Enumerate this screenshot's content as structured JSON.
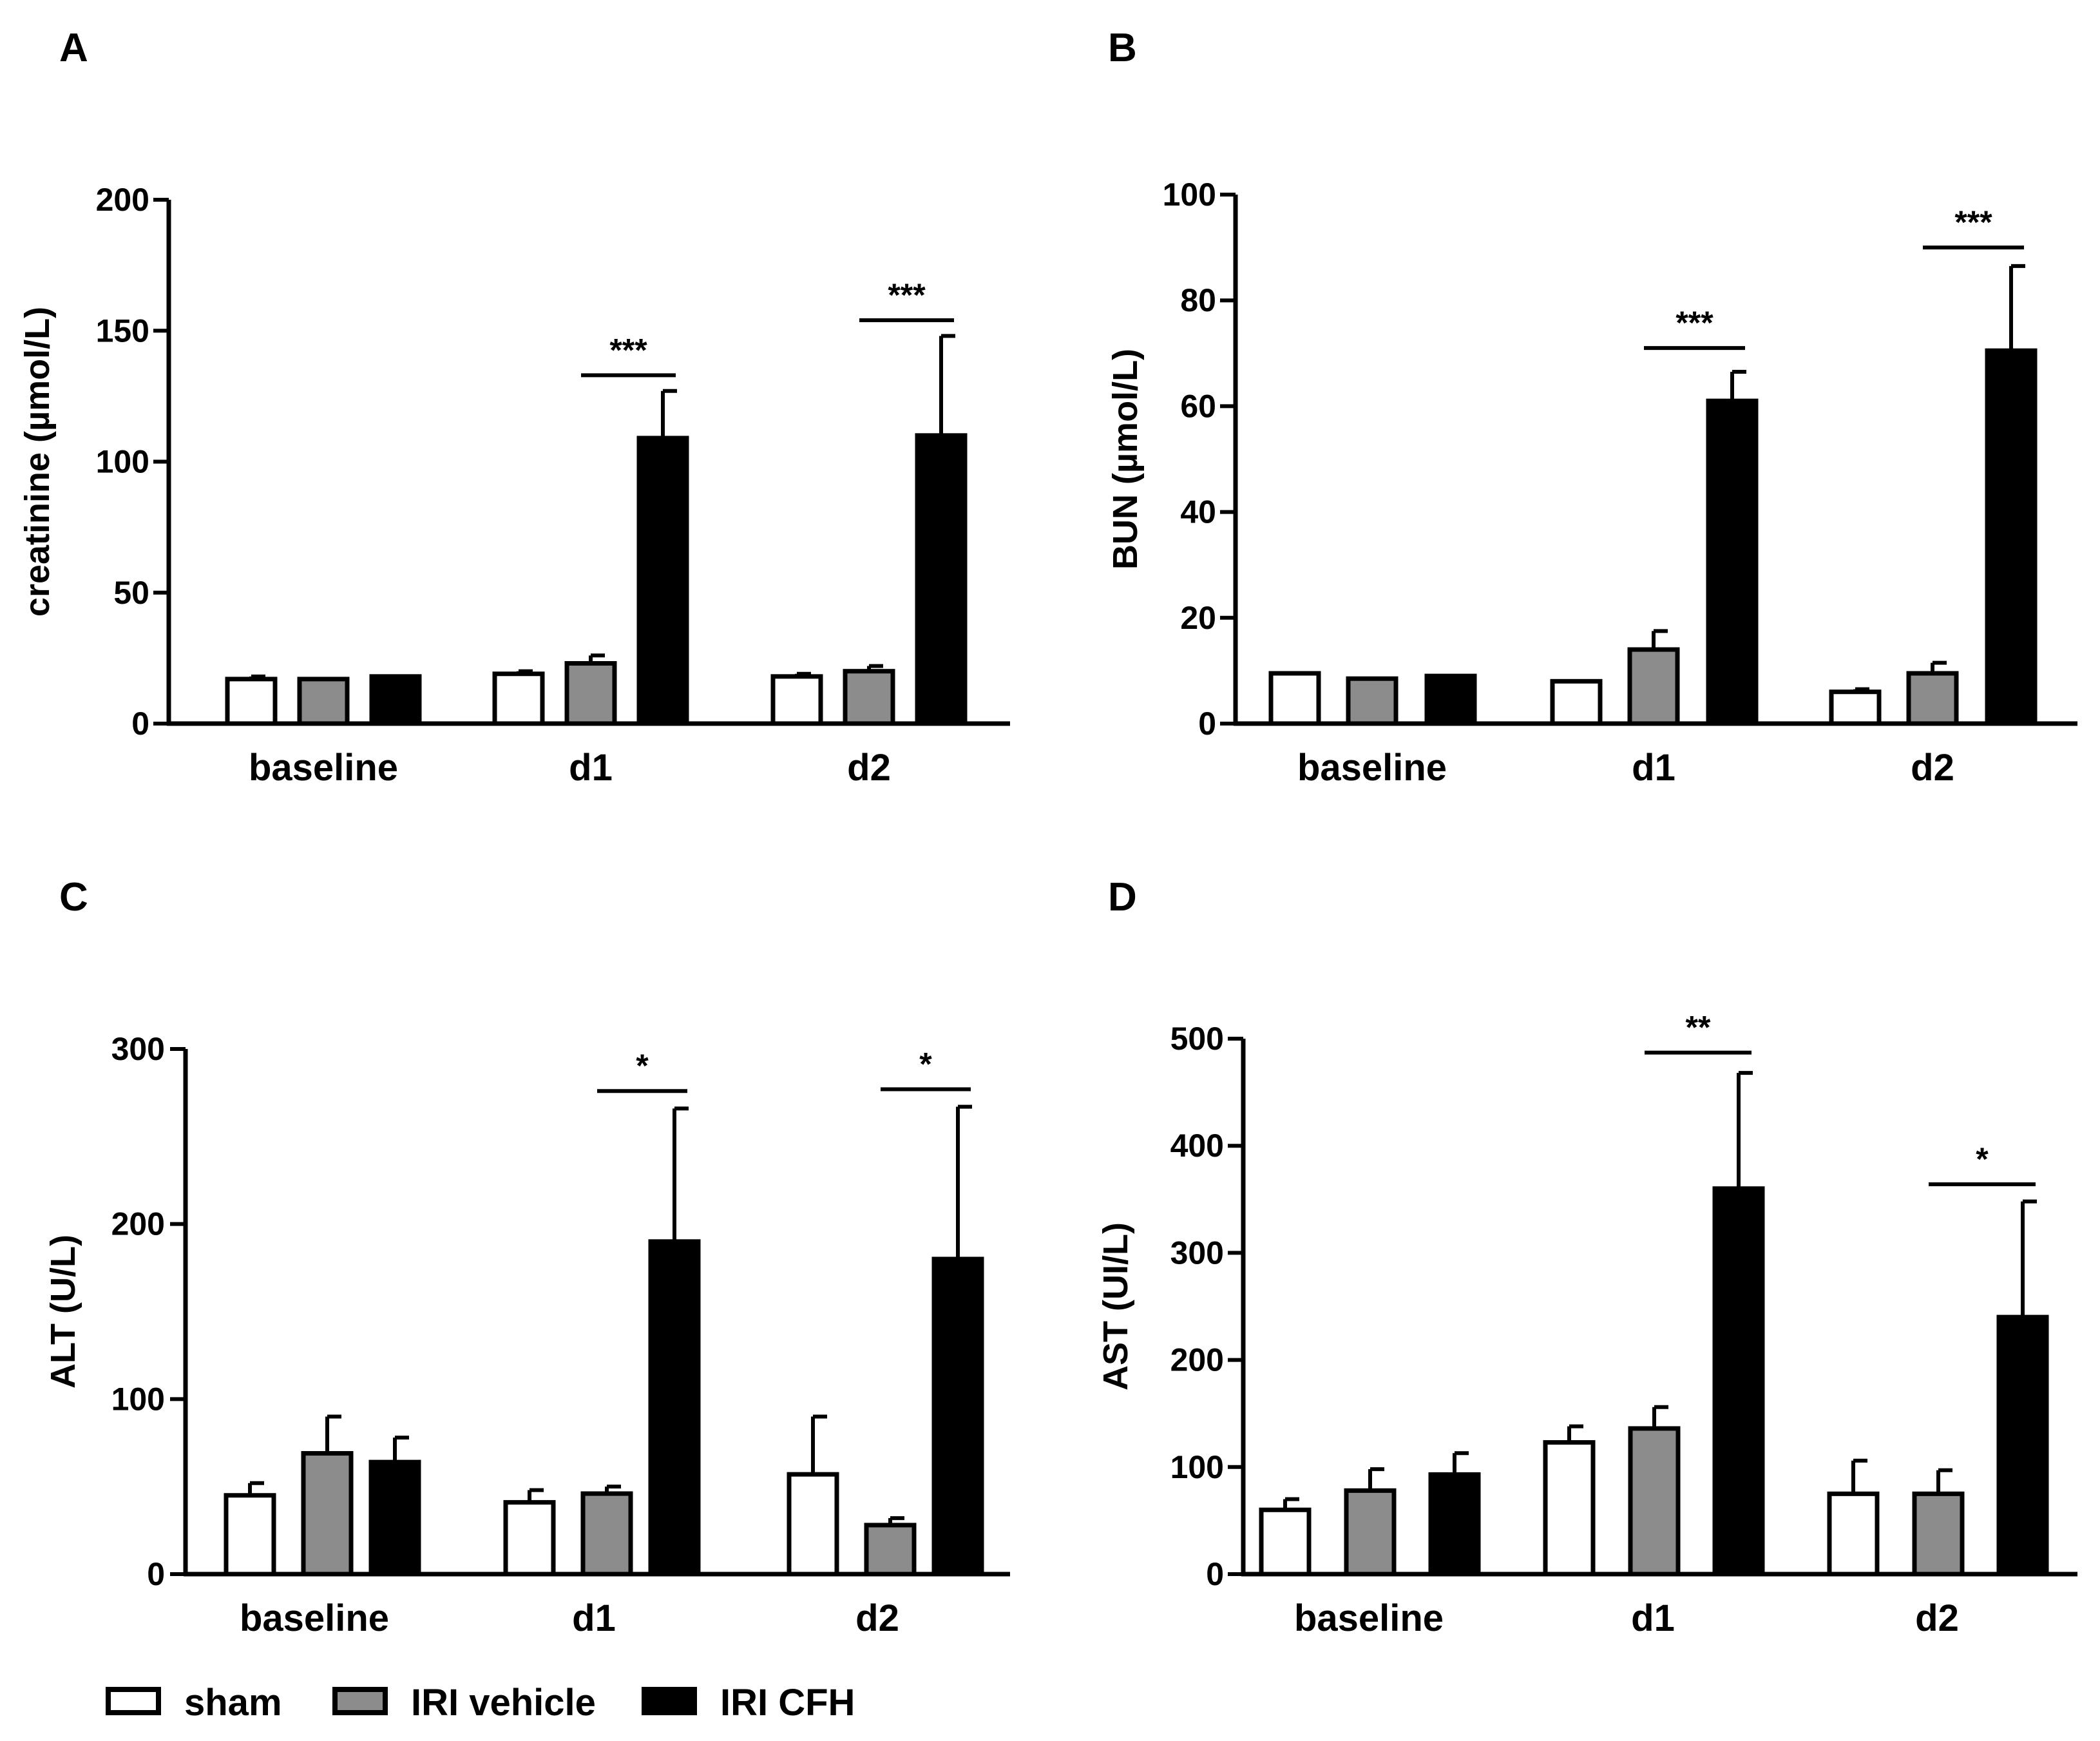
{
  "legend": [
    {
      "name": "sham",
      "color": "#ffffff"
    },
    {
      "name": "IRI vehicle",
      "color": "#8c8c8c"
    },
    {
      "name": "IRI CFH",
      "color": "#000000"
    }
  ],
  "chart_data": [
    {
      "panel": "A",
      "type": "bar",
      "categories": [
        "baseline",
        "d1",
        "d2"
      ],
      "ylabel": "creatinine (µmol/L)",
      "ylim": [
        0,
        200
      ],
      "yticks": [
        0,
        50,
        100,
        150,
        200
      ],
      "series": [
        {
          "name": "sham",
          "values": [
            17,
            19,
            18
          ],
          "errors": [
            1,
            1,
            1
          ]
        },
        {
          "name": "IRI vehicle",
          "values": [
            17,
            23,
            20
          ],
          "errors": [
            0,
            3,
            2
          ]
        },
        {
          "name": "IRI CFH",
          "values": [
            18,
            109,
            110
          ],
          "errors": [
            0,
            18,
            38
          ]
        }
      ],
      "significance": [
        {
          "category": "d1",
          "label": "***",
          "y": 133
        },
        {
          "category": "d2",
          "label": "***",
          "y": 154
        }
      ]
    },
    {
      "panel": "B",
      "type": "bar",
      "categories": [
        "baseline",
        "d1",
        "d2"
      ],
      "ylabel": "BUN (µmol/L)",
      "ylim": [
        0,
        100
      ],
      "yticks": [
        0,
        20,
        40,
        60,
        80,
        100
      ],
      "series": [
        {
          "name": "sham",
          "values": [
            9.5,
            8,
            6
          ],
          "errors": [
            0,
            0,
            0.5
          ]
        },
        {
          "name": "IRI vehicle",
          "values": [
            8.5,
            14,
            9.5
          ],
          "errors": [
            0,
            3.5,
            2
          ]
        },
        {
          "name": "IRI CFH",
          "values": [
            9,
            61,
            70.5
          ],
          "errors": [
            0,
            5.5,
            16
          ]
        }
      ],
      "significance": [
        {
          "category": "d1",
          "label": "***",
          "y": 71
        },
        {
          "category": "d2",
          "label": "***",
          "y": 90
        }
      ]
    },
    {
      "panel": "C",
      "type": "bar",
      "categories": [
        "baseline",
        "d1",
        "d2"
      ],
      "ylabel": "ALT (U/L)",
      "ylim": [
        0,
        300
      ],
      "yticks": [
        0,
        100,
        200,
        300
      ],
      "series": [
        {
          "name": "sham",
          "values": [
            45,
            41,
            57
          ],
          "errors": [
            7,
            7,
            33
          ]
        },
        {
          "name": "IRI vehicle",
          "values": [
            69,
            46,
            28
          ],
          "errors": [
            21,
            4,
            4
          ]
        },
        {
          "name": "IRI CFH",
          "values": [
            64,
            190,
            180
          ],
          "errors": [
            14,
            76,
            87
          ]
        }
      ],
      "significance": [
        {
          "category": "d1",
          "label": "*",
          "y": 276
        },
        {
          "category": "d2",
          "label": "*",
          "y": 277
        }
      ]
    },
    {
      "panel": "D",
      "type": "bar",
      "categories": [
        "baseline",
        "d1",
        "d2"
      ],
      "ylabel": "AST (UI/L)",
      "ylim": [
        0,
        500
      ],
      "yticks": [
        0,
        100,
        200,
        300,
        400,
        500
      ],
      "series": [
        {
          "name": "sham",
          "values": [
            60,
            123,
            75
          ],
          "errors": [
            10,
            15,
            31
          ]
        },
        {
          "name": "IRI vehicle",
          "values": [
            78,
            136,
            75
          ],
          "errors": [
            20,
            20,
            22
          ]
        },
        {
          "name": "IRI CFH",
          "values": [
            93,
            360,
            240
          ],
          "errors": [
            20,
            108,
            108
          ]
        }
      ],
      "significance": [
        {
          "category": "d1",
          "label": "**",
          "y": 487
        },
        {
          "category": "d2",
          "label": "*",
          "y": 364
        }
      ]
    }
  ]
}
